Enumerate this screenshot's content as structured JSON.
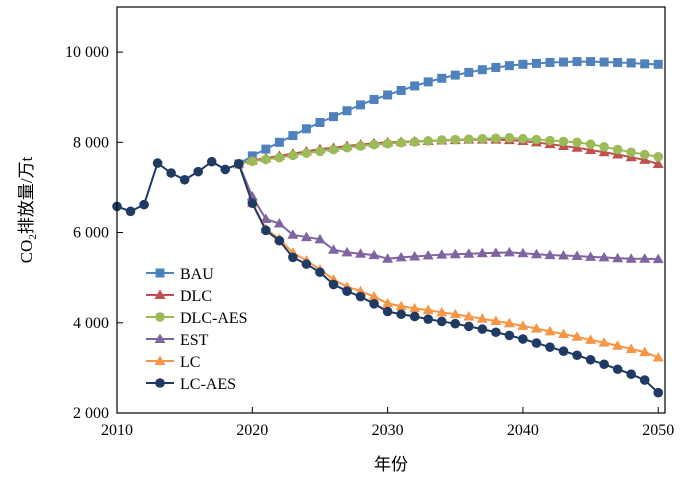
{
  "chart_data": {
    "type": "line",
    "title": "",
    "xlabel": "年份",
    "ylabel_prefix": "CO",
    "ylabel_sub": "2",
    "ylabel_suffix": "排放量/万t",
    "xlim": [
      2010,
      2050.5
    ],
    "ylim": [
      2000,
      11000
    ],
    "xticks": [
      2010,
      2020,
      2030,
      2040,
      2050
    ],
    "xtick_labels": [
      "2010",
      "2020",
      "2030",
      "2040",
      "2050"
    ],
    "yticks": [
      2000,
      4000,
      6000,
      8000,
      10000
    ],
    "ytick_labels": [
      "2 000",
      "4 000",
      "6 000",
      "8 000",
      "10 000"
    ],
    "legend_position": "bottom-left",
    "grid": false,
    "historical": {
      "x": [
        2010,
        2011,
        2012,
        2013,
        2014,
        2015,
        2016,
        2017,
        2018,
        2019
      ],
      "y": [
        6580,
        6470,
        6620,
        7540,
        7320,
        7170,
        7350,
        7570,
        7400,
        7520
      ]
    },
    "x": [
      2019,
      2020,
      2021,
      2022,
      2023,
      2024,
      2025,
      2026,
      2027,
      2028,
      2029,
      2030,
      2031,
      2032,
      2033,
      2034,
      2035,
      2036,
      2037,
      2038,
      2039,
      2040,
      2041,
      2042,
      2043,
      2044,
      2045,
      2046,
      2047,
      2048,
      2049,
      2050
    ],
    "series": [
      {
        "name": "BAU",
        "color": "#4f81bd",
        "marker": "square",
        "values": [
          7520,
          7700,
          7850,
          8000,
          8150,
          8300,
          8440,
          8570,
          8700,
          8830,
          8950,
          9050,
          9150,
          9250,
          9340,
          9420,
          9490,
          9550,
          9610,
          9660,
          9700,
          9730,
          9750,
          9770,
          9780,
          9790,
          9790,
          9780,
          9770,
          9760,
          9740,
          9730
        ]
      },
      {
        "name": "DLC",
        "color": "#c0504d",
        "marker": "triangle",
        "values": [
          7520,
          7600,
          7650,
          7700,
          7750,
          7800,
          7850,
          7880,
          7920,
          7950,
          7980,
          8000,
          8010,
          8020,
          8030,
          8040,
          8050,
          8060,
          8060,
          8060,
          8050,
          8030,
          8000,
          7960,
          7920,
          7880,
          7830,
          7780,
          7730,
          7670,
          7610,
          7520
        ]
      },
      {
        "name": "DLC-AES",
        "color": "#9bbb59",
        "marker": "circle",
        "values": [
          7520,
          7580,
          7620,
          7660,
          7710,
          7760,
          7800,
          7840,
          7880,
          7920,
          7950,
          7970,
          7990,
          8010,
          8030,
          8050,
          8060,
          8070,
          8080,
          8090,
          8100,
          8080,
          8060,
          8040,
          8020,
          8000,
          7960,
          7900,
          7840,
          7780,
          7730,
          7680
        ]
      },
      {
        "name": "EST",
        "color": "#8064a2",
        "marker": "triangle",
        "values": [
          7520,
          6800,
          6300,
          6200,
          5950,
          5900,
          5850,
          5620,
          5560,
          5530,
          5500,
          5420,
          5450,
          5470,
          5490,
          5510,
          5520,
          5530,
          5540,
          5550,
          5560,
          5540,
          5520,
          5500,
          5490,
          5480,
          5460,
          5450,
          5430,
          5420,
          5420,
          5410
        ]
      },
      {
        "name": "LC",
        "color": "#f79646",
        "marker": "triangle",
        "values": [
          7520,
          6650,
          6080,
          5860,
          5550,
          5380,
          5180,
          4960,
          4800,
          4700,
          4580,
          4430,
          4370,
          4320,
          4280,
          4230,
          4190,
          4140,
          4090,
          4040,
          3990,
          3930,
          3870,
          3810,
          3750,
          3690,
          3620,
          3560,
          3490,
          3420,
          3350,
          3230
        ]
      },
      {
        "name": "LC-AES",
        "color": "#1f3b63",
        "marker": "circle",
        "values": [
          7520,
          6650,
          6050,
          5820,
          5450,
          5300,
          5120,
          4850,
          4700,
          4580,
          4420,
          4250,
          4190,
          4140,
          4080,
          4030,
          3980,
          3920,
          3860,
          3790,
          3720,
          3640,
          3550,
          3460,
          3370,
          3280,
          3180,
          3080,
          2970,
          2860,
          2730,
          2450
        ]
      }
    ]
  }
}
